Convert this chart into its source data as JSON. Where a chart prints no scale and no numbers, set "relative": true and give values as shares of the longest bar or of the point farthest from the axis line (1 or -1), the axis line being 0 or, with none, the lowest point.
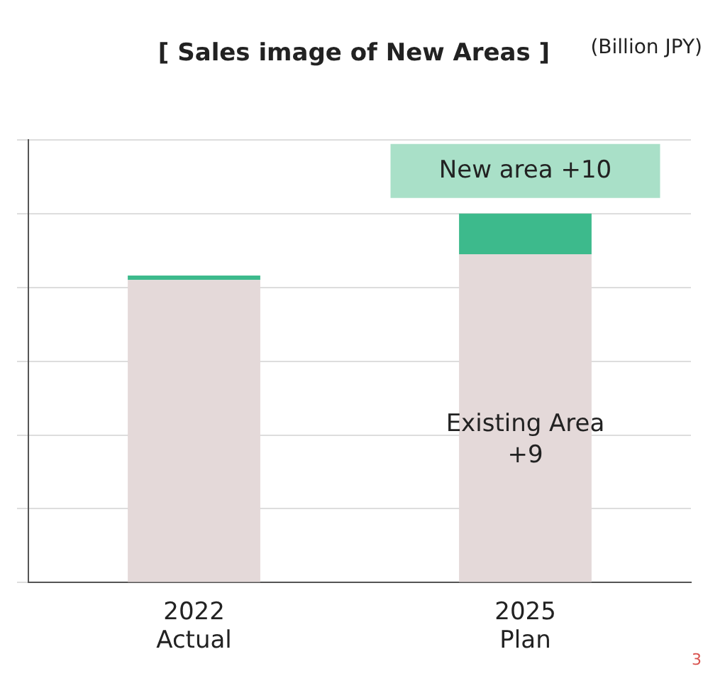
{
  "chart_data": {
    "type": "bar",
    "title": "[ Sales image of New Areas ]",
    "categories": [
      "2022\nActual",
      "2025\nPlan"
    ],
    "stacked": true,
    "relative": true,
    "grid": "y",
    "series": [
      {
        "color": "#e4d9d9",
        "values": [
          0.82,
          0.89
        ]
      },
      {
        "color": "#3dba8c",
        "values": [
          0.012,
          0.11
        ]
      }
    ],
    "annotations": [
      "New area +10",
      "Existing Area\n+9",
      "3",
      "(Billion JPY)"
    ]
  }
}
